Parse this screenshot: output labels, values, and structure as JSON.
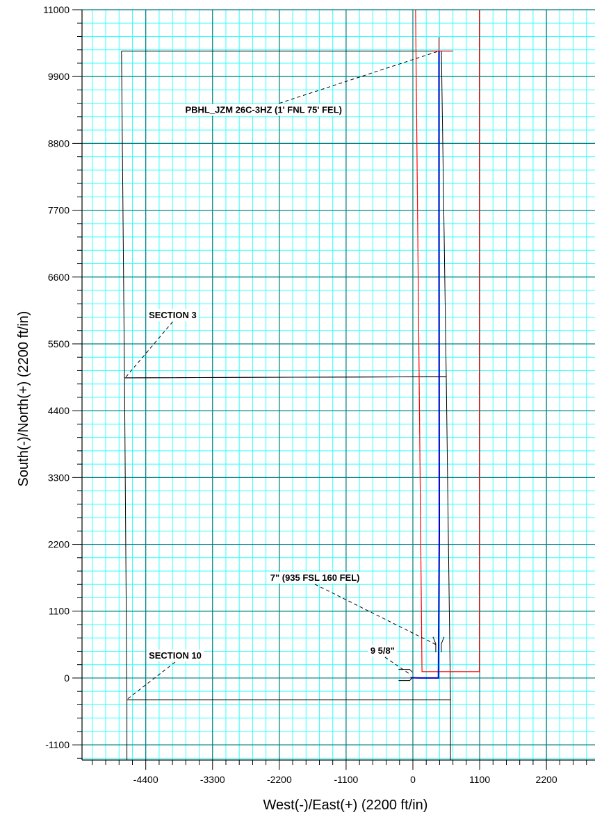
{
  "chart_data": {
    "type": "line",
    "xlabel": "West(-)/East(+) (2200 ft/in)",
    "ylabel": "South(-)/North(+) (2200 ft/in)",
    "xlim": [
      -5450,
      3000
    ],
    "ylim": [
      -1350,
      11000
    ],
    "x_ticks": [
      -4400,
      -3300,
      -2200,
      -1100,
      0,
      1100,
      2200
    ],
    "y_ticks": [
      -1100,
      0,
      1100,
      2200,
      3300,
      4400,
      5500,
      6600,
      7700,
      8800,
      9900,
      11000
    ],
    "grid": true,
    "colors": {
      "major_grid": "#007b7b",
      "minor_grid": "#33ffff",
      "wellpath": "#0000cc",
      "hardline": "#ff0000",
      "section": "#000000",
      "leader": "#000000"
    },
    "series": [
      {
        "name": "",
        "color": "#0000cc",
        "x": [
          -40,
          60,
          120,
          200,
          300,
          420,
          435,
          430,
          430
        ],
        "y": [
          5,
          2,
          0,
          0,
          0,
          0,
          2400,
          7500,
          10320
        ]
      }
    ],
    "hardlines": [
      {
        "x": [
          1095,
          1095,
          150,
          45
        ],
        "y": [
          11000,
          105,
          105,
          11000
        ]
      },
      {
        "x": [
          430,
          430
        ],
        "y": [
          10550,
          8800
        ]
      },
      {
        "x": [
          330,
          660
        ],
        "y": [
          10320,
          10320
        ]
      }
    ],
    "sections": [
      {
        "x": [
          -4800,
          470,
          550,
          -4750,
          -4800
        ],
        "y": [
          10320,
          10320,
          4960,
          4940,
          10320
        ]
      },
      {
        "x": [
          -4750,
          550,
          620,
          -4710,
          -4750
        ],
        "y": [
          4940,
          4960,
          -360,
          -360,
          4940
        ]
      },
      {
        "x": [
          -4710,
          620
        ],
        "y": [
          -360,
          -360
        ]
      },
      {
        "x": [
          -4710,
          -4710
        ],
        "y": [
          -360,
          -1350
        ]
      },
      {
        "x": [
          620,
          620
        ],
        "y": [
          -360,
          -1350
        ]
      }
    ],
    "annotations": [
      {
        "text": "PBHL_JZM 26C-3HZ (1' FNL 75' FEL)",
        "x": -3750,
        "y": 9300,
        "target_x": 430,
        "target_y": 10320
      },
      {
        "text": "SECTION 3",
        "x": -4350,
        "y": 5920,
        "target_x": -4740,
        "target_y": 4940
      },
      {
        "text": "7\" (935 FSL 160 FEL)",
        "x": -2350,
        "y": 1600,
        "target_x": 400,
        "target_y": 540
      },
      {
        "text": "SECTION 10",
        "x": -4350,
        "y": 320,
        "target_x": -4720,
        "target_y": -360
      },
      {
        "text": "9 5/8\"",
        "x": -700,
        "y": 400,
        "target_x": -30,
        "target_y": 50
      }
    ],
    "casing_markers": [
      {
        "x": 400,
        "y": 540,
        "label_ref": "7\" (935 FSL 160 FEL)"
      },
      {
        "x": -30,
        "y": 50,
        "label_ref": "9 5/8\""
      }
    ]
  }
}
